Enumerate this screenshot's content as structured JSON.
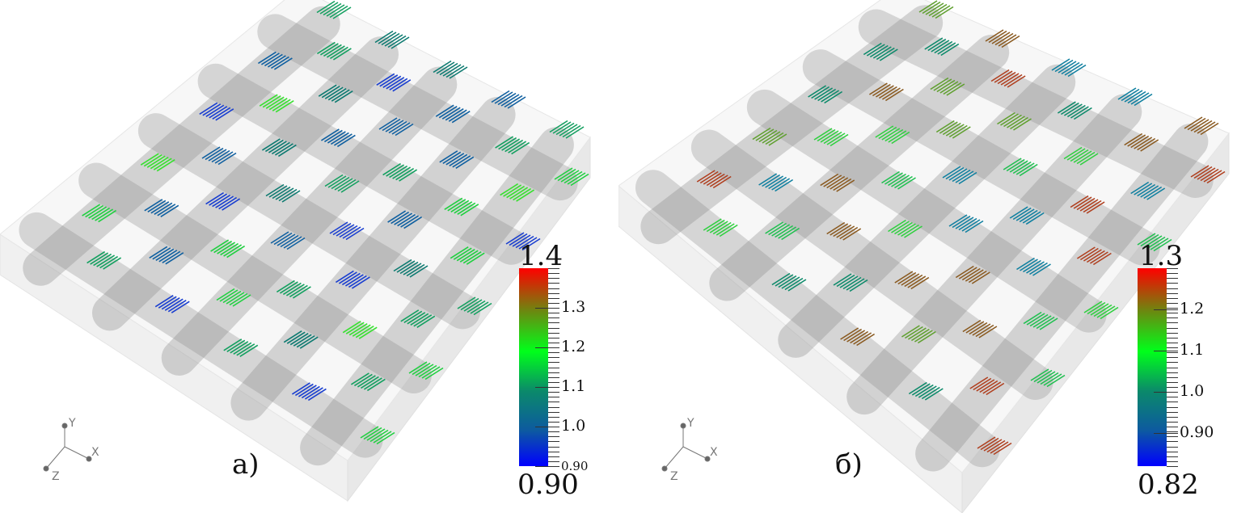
{
  "panels": [
    {
      "label": "а)",
      "colorbar": {
        "min_label": "0.90",
        "max_label": "1.4",
        "min": 0.9,
        "max": 1.4,
        "ticks": [
          {
            "v": 1.3,
            "label": "1.3"
          },
          {
            "v": 1.2,
            "label": "1.2"
          },
          {
            "v": 1.1,
            "label": "1.1"
          },
          {
            "v": 1.0,
            "label": "1.0"
          },
          {
            "v": 0.9,
            "label": "0.90",
            "small": true
          }
        ]
      },
      "axes": {
        "x": "X",
        "y": "Y",
        "z": "Z"
      }
    },
    {
      "label": "б)",
      "colorbar": {
        "min_label": "0.82",
        "max_label": "1.3",
        "min": 0.82,
        "max": 1.3,
        "ticks": [
          {
            "v": 1.2,
            "label": "1.2"
          },
          {
            "v": 1.1,
            "label": "1.1"
          },
          {
            "v": 1.0,
            "label": "1.0"
          },
          {
            "v": 0.9,
            "label": "0.90"
          }
        ]
      },
      "axes": {
        "x": "X",
        "y": "Y",
        "z": "Z"
      }
    }
  ],
  "colormap": [
    "#0000ff",
    "#0b8a6a",
    "#00ff1a",
    "#8a5a10",
    "#ff0000"
  ]
}
